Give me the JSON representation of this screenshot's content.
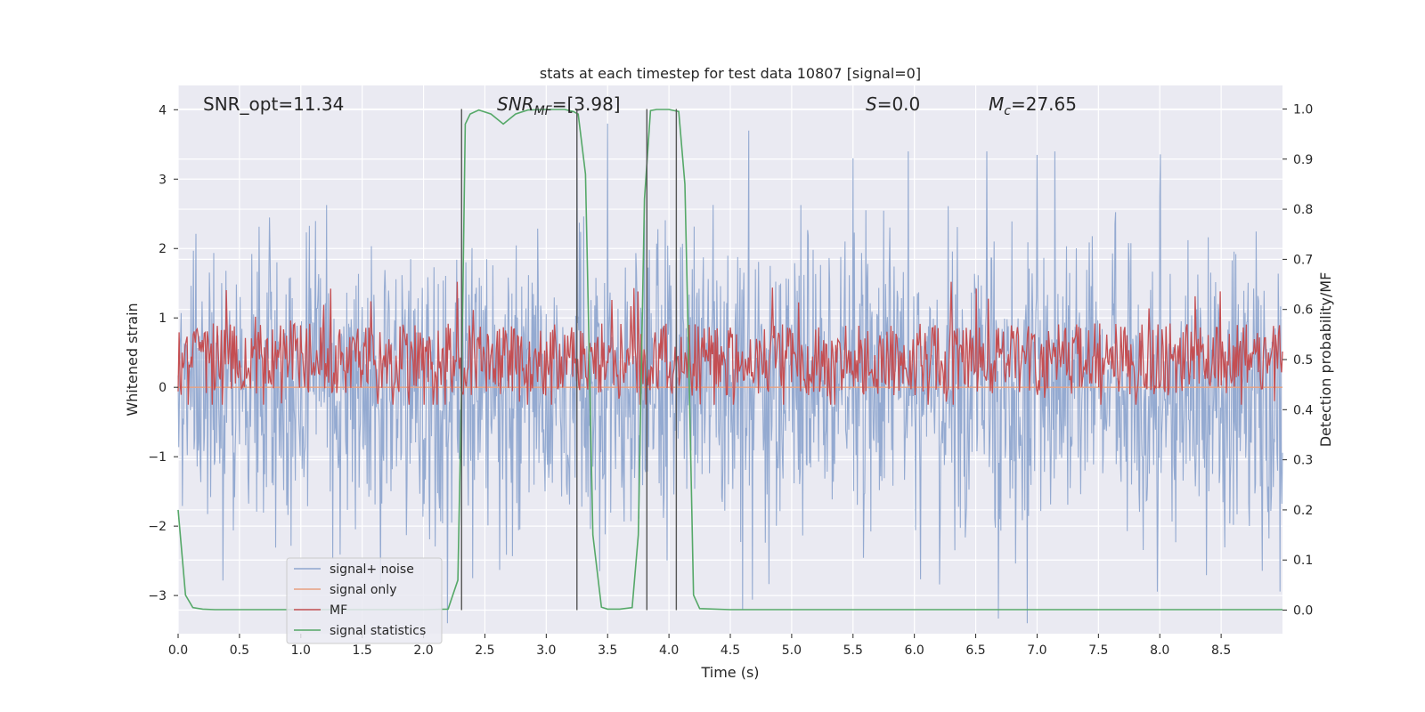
{
  "chart_data": {
    "type": "line",
    "title": "stats at each timestep for test data 10807 [signal=0]",
    "xlabel": "Time (s)",
    "ylabel": "Whitened strain",
    "ylabel_right": "Detection probability/MF",
    "xlim": [
      0.0,
      9.0
    ],
    "ylim": [
      -3.55,
      4.35
    ],
    "ylim_right": [
      -0.047,
      1.047
    ],
    "x_ticks": [
      "0.0",
      "0.5",
      "1.0",
      "1.5",
      "2.0",
      "2.5",
      "3.0",
      "3.5",
      "4.0",
      "4.5",
      "5.0",
      "5.5",
      "6.0",
      "6.5",
      "7.0",
      "7.5",
      "8.0",
      "8.5"
    ],
    "y_ticks": [
      "4",
      "3",
      "2",
      "1",
      "0",
      "−1",
      "−2",
      "−3"
    ],
    "y_tick_values": [
      4,
      3,
      2,
      1,
      0,
      -1,
      -2,
      -3
    ],
    "y_right_ticks": [
      "1.0",
      "0.9",
      "0.8",
      "0.7",
      "0.6",
      "0.5",
      "0.4",
      "0.3",
      "0.2",
      "0.1",
      "0.0"
    ],
    "y_right_tick_values": [
      1.0,
      0.9,
      0.8,
      0.7,
      0.6,
      0.5,
      0.4,
      0.3,
      0.2,
      0.1,
      0.0
    ],
    "annotations": {
      "snr_opt": "SNR_opt=11.34",
      "snr_mf_label": "SNR",
      "snr_mf_sub": "MF",
      "snr_mf_value": "=[3.98]",
      "s_label": "S",
      "s_value": "=0.0",
      "mc_label": "M",
      "mc_sub": "c",
      "mc_value": "=27.65"
    },
    "vertical_lines": [
      2.31,
      3.25,
      3.82,
      4.06
    ],
    "series": [
      {
        "name": "signal+ noise",
        "color": "#8fa6cf",
        "description": "whitened noisy strain, spans roughly ±2 with spikes to about ±3.4",
        "amplitude_core": 1.0,
        "amplitude_spike": 3.4,
        "spikes": [
          [
            3.25,
            4.0
          ],
          [
            3.5,
            3.8
          ],
          [
            4.65,
            3.7
          ],
          [
            7.0,
            3.35
          ],
          [
            5.5,
            3.3
          ],
          [
            2.4,
            -2.75
          ],
          [
            4.6,
            -3.2
          ]
        ]
      },
      {
        "name": "signal only",
        "color": "#e8a07f",
        "description": "flat zero signal",
        "value": 0.0
      },
      {
        "name": "MF",
        "color": "#c44e52",
        "description": "matched filter output, right axis, baseline about 0.5",
        "baseline": 0.5,
        "amplitude": 0.12
      },
      {
        "name": "signal statistics",
        "color": "#55a868",
        "x": [
          0.0,
          0.06,
          0.12,
          0.2,
          0.3,
          0.5,
          1.0,
          1.5,
          2.0,
          2.2,
          2.28,
          2.31,
          2.34,
          2.38,
          2.45,
          2.55,
          2.65,
          2.75,
          2.85,
          3.0,
          3.15,
          3.22,
          3.26,
          3.32,
          3.38,
          3.45,
          3.5,
          3.6,
          3.7,
          3.75,
          3.8,
          3.85,
          3.9,
          4.0,
          4.08,
          4.13,
          4.17,
          4.2,
          4.25,
          4.5,
          5.0,
          6.0,
          7.0,
          8.0,
          9.0
        ],
        "values": [
          0.2,
          0.03,
          0.005,
          0.002,
          0.001,
          0.001,
          0.001,
          0.001,
          0.001,
          0.002,
          0.06,
          0.45,
          0.97,
          0.99,
          0.998,
          0.99,
          0.97,
          0.99,
          0.998,
          0.999,
          0.999,
          0.995,
          0.99,
          0.87,
          0.15,
          0.006,
          0.002,
          0.002,
          0.005,
          0.15,
          0.82,
          0.997,
          0.999,
          0.999,
          0.995,
          0.85,
          0.4,
          0.03,
          0.003,
          0.001,
          0.001,
          0.001,
          0.001,
          0.001,
          0.001
        ]
      }
    ],
    "legend": {
      "position": "lower-left",
      "entries": [
        "signal+ noise",
        "signal only",
        "MF",
        "signal statistics"
      ]
    },
    "grid": true
  }
}
